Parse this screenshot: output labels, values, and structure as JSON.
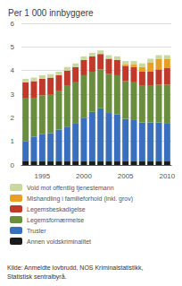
{
  "chart_data": {
    "type": "bar",
    "title": "Per 1 000 innbyggere",
    "categories": [
      null,
      null,
      "1995",
      null,
      null,
      null,
      null,
      "2000",
      null,
      null,
      null,
      null,
      "2005",
      null,
      null,
      null,
      null,
      "2010"
    ],
    "series": [
      {
        "name": "Annen voldskriminalitet",
        "color": "#1a1a1a",
        "values": [
          0.15,
          0.15,
          0.15,
          0.15,
          0.15,
          0.15,
          0.15,
          0.15,
          0.15,
          0.15,
          0.15,
          0.15,
          0.15,
          0.15,
          0.15,
          0.15,
          0.15,
          0.15
        ]
      },
      {
        "name": "Trusler",
        "color": "#3a6fbd",
        "values": [
          0.85,
          1.05,
          1.15,
          1.2,
          1.35,
          1.45,
          1.6,
          1.85,
          2.1,
          2.25,
          2.05,
          2.0,
          1.8,
          1.75,
          1.65,
          1.65,
          1.65,
          1.6
        ]
      },
      {
        "name": "Legemsfornærmelse",
        "color": "#6b8e3e",
        "values": [
          1.85,
          1.65,
          1.65,
          1.65,
          1.65,
          1.75,
          1.75,
          1.8,
          1.7,
          1.65,
          1.65,
          1.65,
          1.6,
          1.6,
          1.55,
          1.55,
          1.6,
          1.65
        ]
      },
      {
        "name": "Legemsbeskadigelse",
        "color": "#c0392b",
        "values": [
          0.65,
          0.7,
          0.7,
          0.7,
          0.65,
          0.65,
          0.65,
          0.65,
          0.65,
          0.65,
          0.65,
          0.65,
          0.65,
          0.65,
          0.6,
          0.6,
          0.65,
          0.7
        ]
      },
      {
        "name": "Mishandling i familieforhold (inkl. grov)",
        "color": "#e8a020",
        "values": [
          0.0,
          0.0,
          0.0,
          0.0,
          0.0,
          0.0,
          0.0,
          0.0,
          0.0,
          0.0,
          0.0,
          0.0,
          0.05,
          0.1,
          0.2,
          0.4,
          0.45,
          0.4
        ]
      },
      {
        "name": "Vold mot offentlig tjenestemann",
        "color": "#c8d9a0",
        "values": [
          0.15,
          0.15,
          0.15,
          0.15,
          0.15,
          0.15,
          0.15,
          0.15,
          0.15,
          0.15,
          0.15,
          0.15,
          0.15,
          0.15,
          0.15,
          0.15,
          0.15,
          0.15
        ]
      }
    ],
    "ylim": [
      0,
      6
    ],
    "yticks": [
      0,
      1,
      2,
      3,
      4,
      5,
      6
    ],
    "grid": true,
    "stacked": true,
    "legend": "bottom",
    "annotations": [
      "Kilde: Anmeldte lovbrudd, NOS Kriminalstatistikk,\nStatistisk sentralbyrå."
    ]
  }
}
